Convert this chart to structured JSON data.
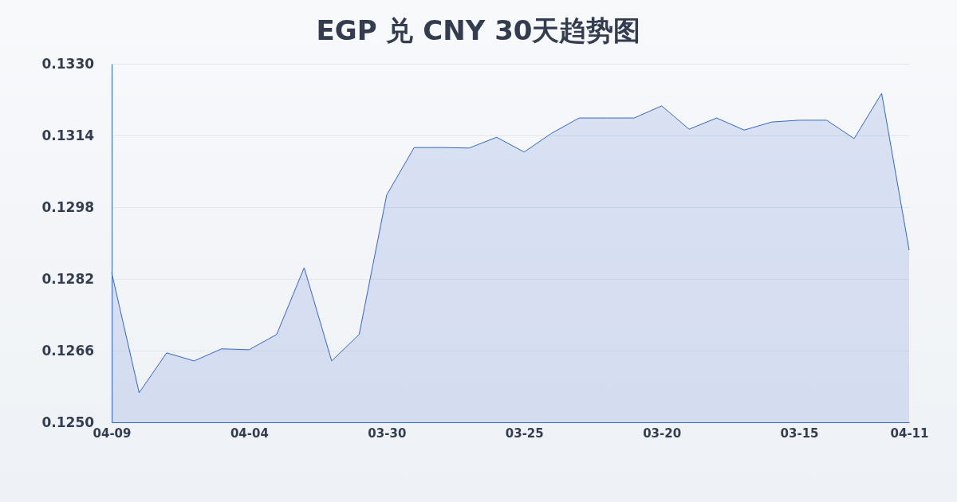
{
  "chart_data": {
    "type": "area",
    "title": "EGP 兑 CNY 30天趋势图",
    "categories": [
      "04-09",
      null,
      null,
      null,
      null,
      "04-04",
      null,
      null,
      null,
      null,
      "03-30",
      null,
      null,
      null,
      null,
      "03-25",
      null,
      null,
      null,
      null,
      "03-20",
      null,
      null,
      null,
      null,
      "03-15",
      null,
      null,
      null,
      "04-11"
    ],
    "series": [
      {
        "color": "#3366cc",
        "values": [
          0.12834,
          0.12566,
          0.12655,
          0.12637,
          0.12664,
          0.12662,
          0.12696,
          0.12845,
          0.12637,
          0.12696,
          0.13007,
          0.13113,
          0.13113,
          0.13112,
          0.13136,
          0.13103,
          0.13145,
          0.13179,
          0.13179,
          0.13179,
          0.13206,
          0.13154,
          0.13179,
          0.13152,
          0.1317,
          0.13174,
          0.13174,
          0.13133,
          0.13234,
          0.12884
        ]
      }
    ],
    "ylim": [
      0.125,
      0.133
    ],
    "yticks": [
      {
        "value": 0.125,
        "label": "0.1250"
      },
      {
        "value": 0.1266,
        "label": "0.1266"
      },
      {
        "value": 0.1282,
        "label": "0.1282"
      },
      {
        "value": 0.1298,
        "label": "0.1298"
      },
      {
        "value": 0.1314,
        "label": "0.1314"
      },
      {
        "value": 0.133,
        "label": "0.1330"
      }
    ],
    "grid": "y"
  }
}
